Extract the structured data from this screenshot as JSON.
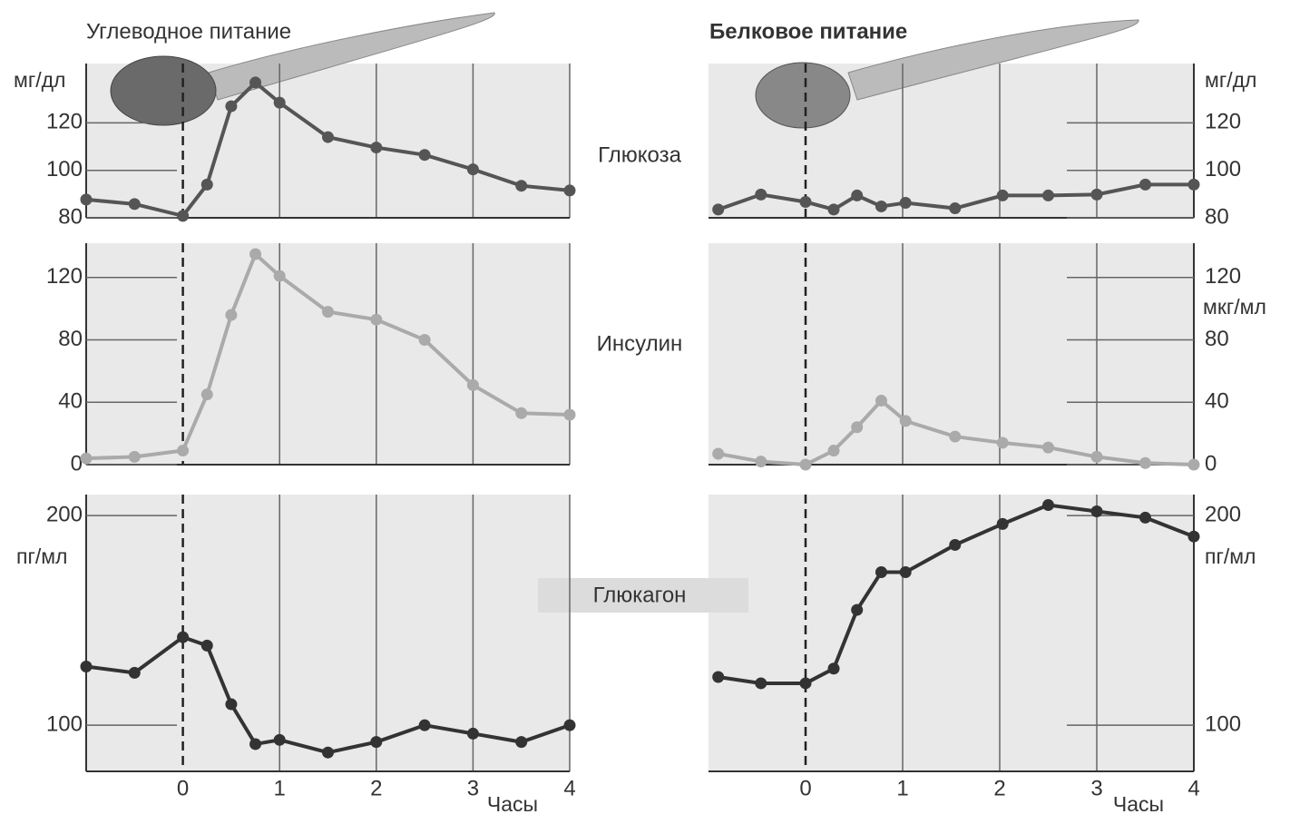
{
  "chart_data": [
    {
      "type": "line",
      "title": "Углеводное питание",
      "annotation": "Глюкоза",
      "y_label": "мг/дл",
      "color": "#555555",
      "x": [
        -1,
        -0.5,
        0,
        0.25,
        0.5,
        0.75,
        1,
        1.5,
        2,
        2.5,
        3,
        3.5,
        4
      ],
      "values": [
        87.7,
        85.8,
        80.8,
        94,
        127,
        137,
        128.5,
        114,
        109.6,
        106.5,
        100.4,
        93.5,
        91.5
      ],
      "xlim": [
        -1,
        4
      ],
      "ylim": [
        80,
        145
      ],
      "yticks": [
        80,
        100,
        120
      ]
    },
    {
      "type": "line",
      "annotation": "Инсулин",
      "color": "#aaaaaa",
      "x": [
        -1,
        -0.5,
        0,
        0.25,
        0.5,
        0.75,
        1,
        1.5,
        2,
        2.5,
        3,
        3.5,
        4
      ],
      "values": [
        4,
        5,
        9,
        45,
        96,
        135,
        121,
        98,
        93,
        80,
        51,
        33,
        32
      ],
      "xlim": [
        -1,
        4
      ],
      "ylim": [
        0,
        142
      ],
      "yticks": [
        0,
        40,
        80,
        120
      ]
    },
    {
      "type": "line",
      "annotation": "Глюкагон",
      "y_label": "пг/мл",
      "x_label": "Часы",
      "color": "#333333",
      "x": [
        -1,
        -0.5,
        0,
        0.25,
        0.5,
        0.75,
        1,
        1.5,
        2,
        2.5,
        3,
        3.5,
        4
      ],
      "values": [
        128,
        125,
        142,
        138,
        110,
        91,
        93,
        87,
        92,
        100,
        96,
        92,
        100
      ],
      "xlim": [
        -1,
        4
      ],
      "xticks": [
        0,
        1,
        2,
        3,
        4
      ],
      "ylim": [
        78,
        210
      ],
      "yticks": [
        100,
        200
      ]
    },
    {
      "type": "line",
      "title": "Белковое питание",
      "y_label": "мг/дл",
      "color": "#555555",
      "x": [
        -0.9,
        -0.46,
        0,
        0.29,
        0.53,
        0.78,
        1.03,
        1.54,
        2.03,
        2.5,
        3,
        3.5,
        4
      ],
      "values": [
        83.5,
        89.8,
        86.7,
        83.5,
        89.4,
        84.8,
        86.3,
        84,
        89.4,
        89.4,
        89.8,
        94,
        94
      ],
      "xlim": [
        -1,
        4
      ],
      "ylim": [
        80,
        145
      ],
      "yticks": [
        80,
        100,
        120
      ]
    },
    {
      "type": "line",
      "y_label": "мкг/мл",
      "color": "#aaaaaa",
      "x": [
        -0.9,
        -0.46,
        0,
        0.29,
        0.53,
        0.78,
        1.03,
        1.54,
        2.03,
        2.5,
        3,
        3.5,
        4
      ],
      "values": [
        7,
        2,
        0,
        9,
        24,
        41,
        28,
        18,
        14,
        11,
        5,
        1,
        0
      ],
      "xlim": [
        -1,
        4
      ],
      "ylim": [
        0,
        142
      ],
      "yticks": [
        0,
        40,
        80,
        120
      ]
    },
    {
      "type": "line",
      "y_label": "пг/мл",
      "x_label": "Часы",
      "color": "#333333",
      "x": [
        -0.9,
        -0.46,
        0,
        0.29,
        0.53,
        0.78,
        1.03,
        1.54,
        2.03,
        2.5,
        3,
        3.5,
        4
      ],
      "values": [
        123,
        120,
        120,
        127,
        155,
        173,
        173,
        186,
        196,
        205,
        202,
        199,
        190
      ],
      "xlim": [
        -1,
        4
      ],
      "xticks": [
        0,
        1,
        2,
        3,
        4
      ],
      "ylim": [
        78,
        210
      ],
      "yticks": [
        100,
        200
      ]
    }
  ]
}
